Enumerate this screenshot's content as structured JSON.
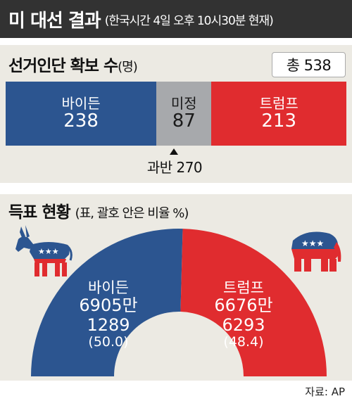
{
  "header": {
    "title": "미 대선 결과",
    "subtitle": "(한국시간 4일 오후 10시30분 현재)"
  },
  "electoral": {
    "heading": "선거인단 확보 수",
    "unit": "(명)",
    "total_label": "총 538",
    "majority_label": "과반 270"
  },
  "popular": {
    "heading": "득표 현황",
    "note": "(표, 괄호 안은 비율 %)"
  },
  "source": "자료: AP",
  "colors": {
    "biden": "#2c5590",
    "undecided": "#a7a9ac",
    "trump": "#e02c2f",
    "title_bg": "#323232",
    "panel_bg": "#eceae3"
  },
  "icons": {
    "democrat": "donkey-icon",
    "republican": "elephant-icon"
  },
  "chart_data": [
    {
      "type": "bar",
      "title": "선거인단 확보 수",
      "categories": [
        "바이든",
        "미정",
        "트럼프"
      ],
      "values": [
        238,
        87,
        213
      ],
      "value_labels": [
        "238",
        "87",
        "213"
      ],
      "total": 538,
      "majority_threshold": 270,
      "stacked": true
    },
    {
      "type": "pie",
      "title": "득표 현황",
      "shape": "semicircle",
      "categories": [
        "바이든",
        "트럼프"
      ],
      "vote_labels": [
        "6905만\n1289",
        "6676만\n6293"
      ],
      "vote_line1": [
        "6905만",
        "6676만"
      ],
      "vote_line2": [
        "1289",
        "6293"
      ],
      "votes": [
        69051289,
        66766293
      ],
      "percent": [
        50.0,
        48.4
      ],
      "percent_labels": [
        "(50.0)",
        "(48.4)"
      ]
    }
  ]
}
